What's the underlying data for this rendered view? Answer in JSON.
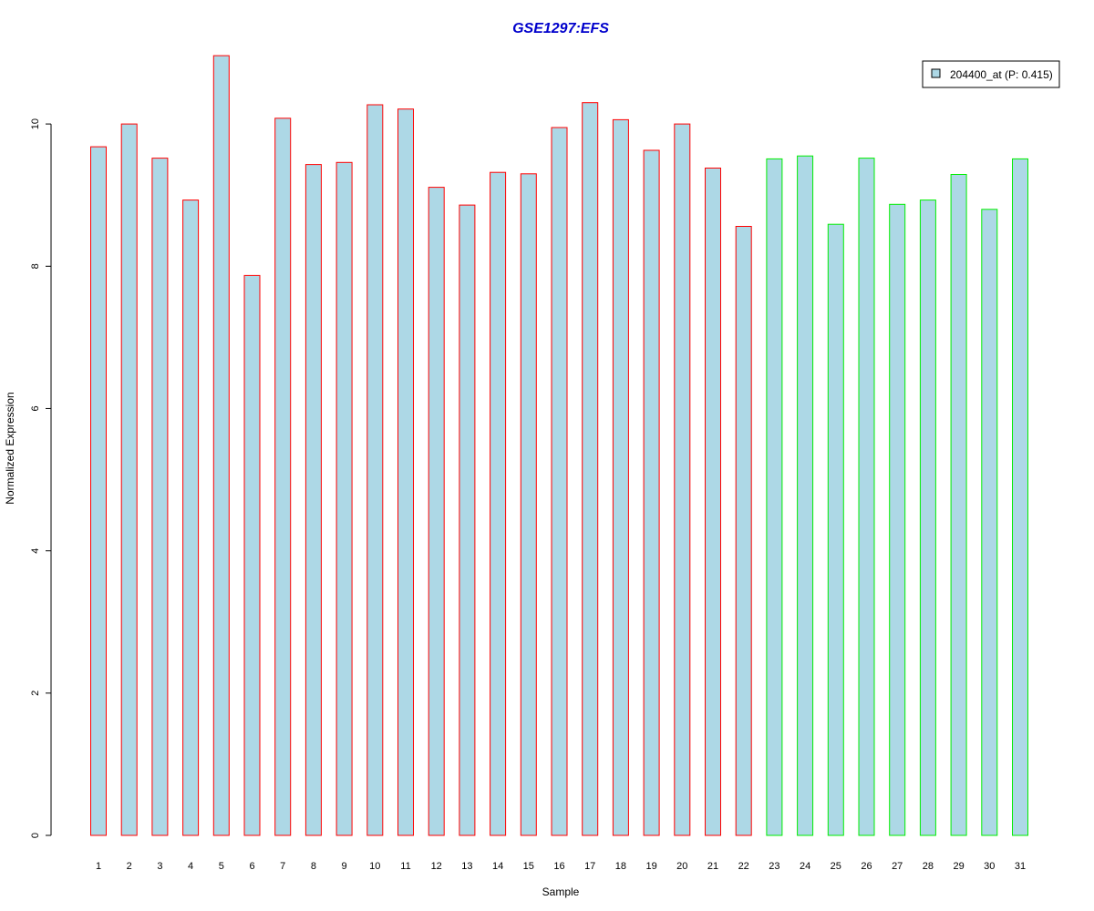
{
  "chart_data": {
    "type": "bar",
    "title": "GSE1297:EFS",
    "xlabel": "Sample",
    "ylabel": "Normalized Expression",
    "categories": [
      "1",
      "2",
      "3",
      "4",
      "5",
      "6",
      "7",
      "8",
      "9",
      "10",
      "11",
      "12",
      "13",
      "14",
      "15",
      "16",
      "17",
      "18",
      "19",
      "20",
      "21",
      "22",
      "23",
      "24",
      "25",
      "26",
      "27",
      "28",
      "29",
      "30",
      "31"
    ],
    "series": [
      {
        "name": "204400_at (P: 0.415)",
        "values": [
          9.68,
          10.0,
          9.52,
          8.93,
          10.96,
          7.87,
          10.08,
          9.43,
          9.46,
          10.27,
          10.21,
          9.11,
          8.86,
          9.32,
          9.3,
          9.95,
          10.3,
          10.06,
          9.63,
          10.0,
          9.38,
          8.56,
          9.51,
          9.55,
          8.59,
          9.52,
          8.87,
          8.93,
          9.29,
          8.8,
          9.51
        ]
      }
    ],
    "group_border_colors": [
      "#ff0000",
      "#ff0000",
      "#ff0000",
      "#ff0000",
      "#ff0000",
      "#ff0000",
      "#ff0000",
      "#ff0000",
      "#ff0000",
      "#ff0000",
      "#ff0000",
      "#ff0000",
      "#ff0000",
      "#ff0000",
      "#ff0000",
      "#ff0000",
      "#ff0000",
      "#ff0000",
      "#ff0000",
      "#ff0000",
      "#ff0000",
      "#ff0000",
      "#00ee00",
      "#00ee00",
      "#00ee00",
      "#00ee00",
      "#00ee00",
      "#00ee00",
      "#00ee00",
      "#00ee00",
      "#00ee00"
    ],
    "ylim": [
      0,
      11
    ],
    "yticks": [
      0,
      2,
      4,
      6,
      8,
      10
    ],
    "grid": false,
    "legend_position": "top-right",
    "colors": {
      "bar_fill": "#add8e6",
      "title": "#0000cc",
      "axis": "#000000"
    }
  }
}
